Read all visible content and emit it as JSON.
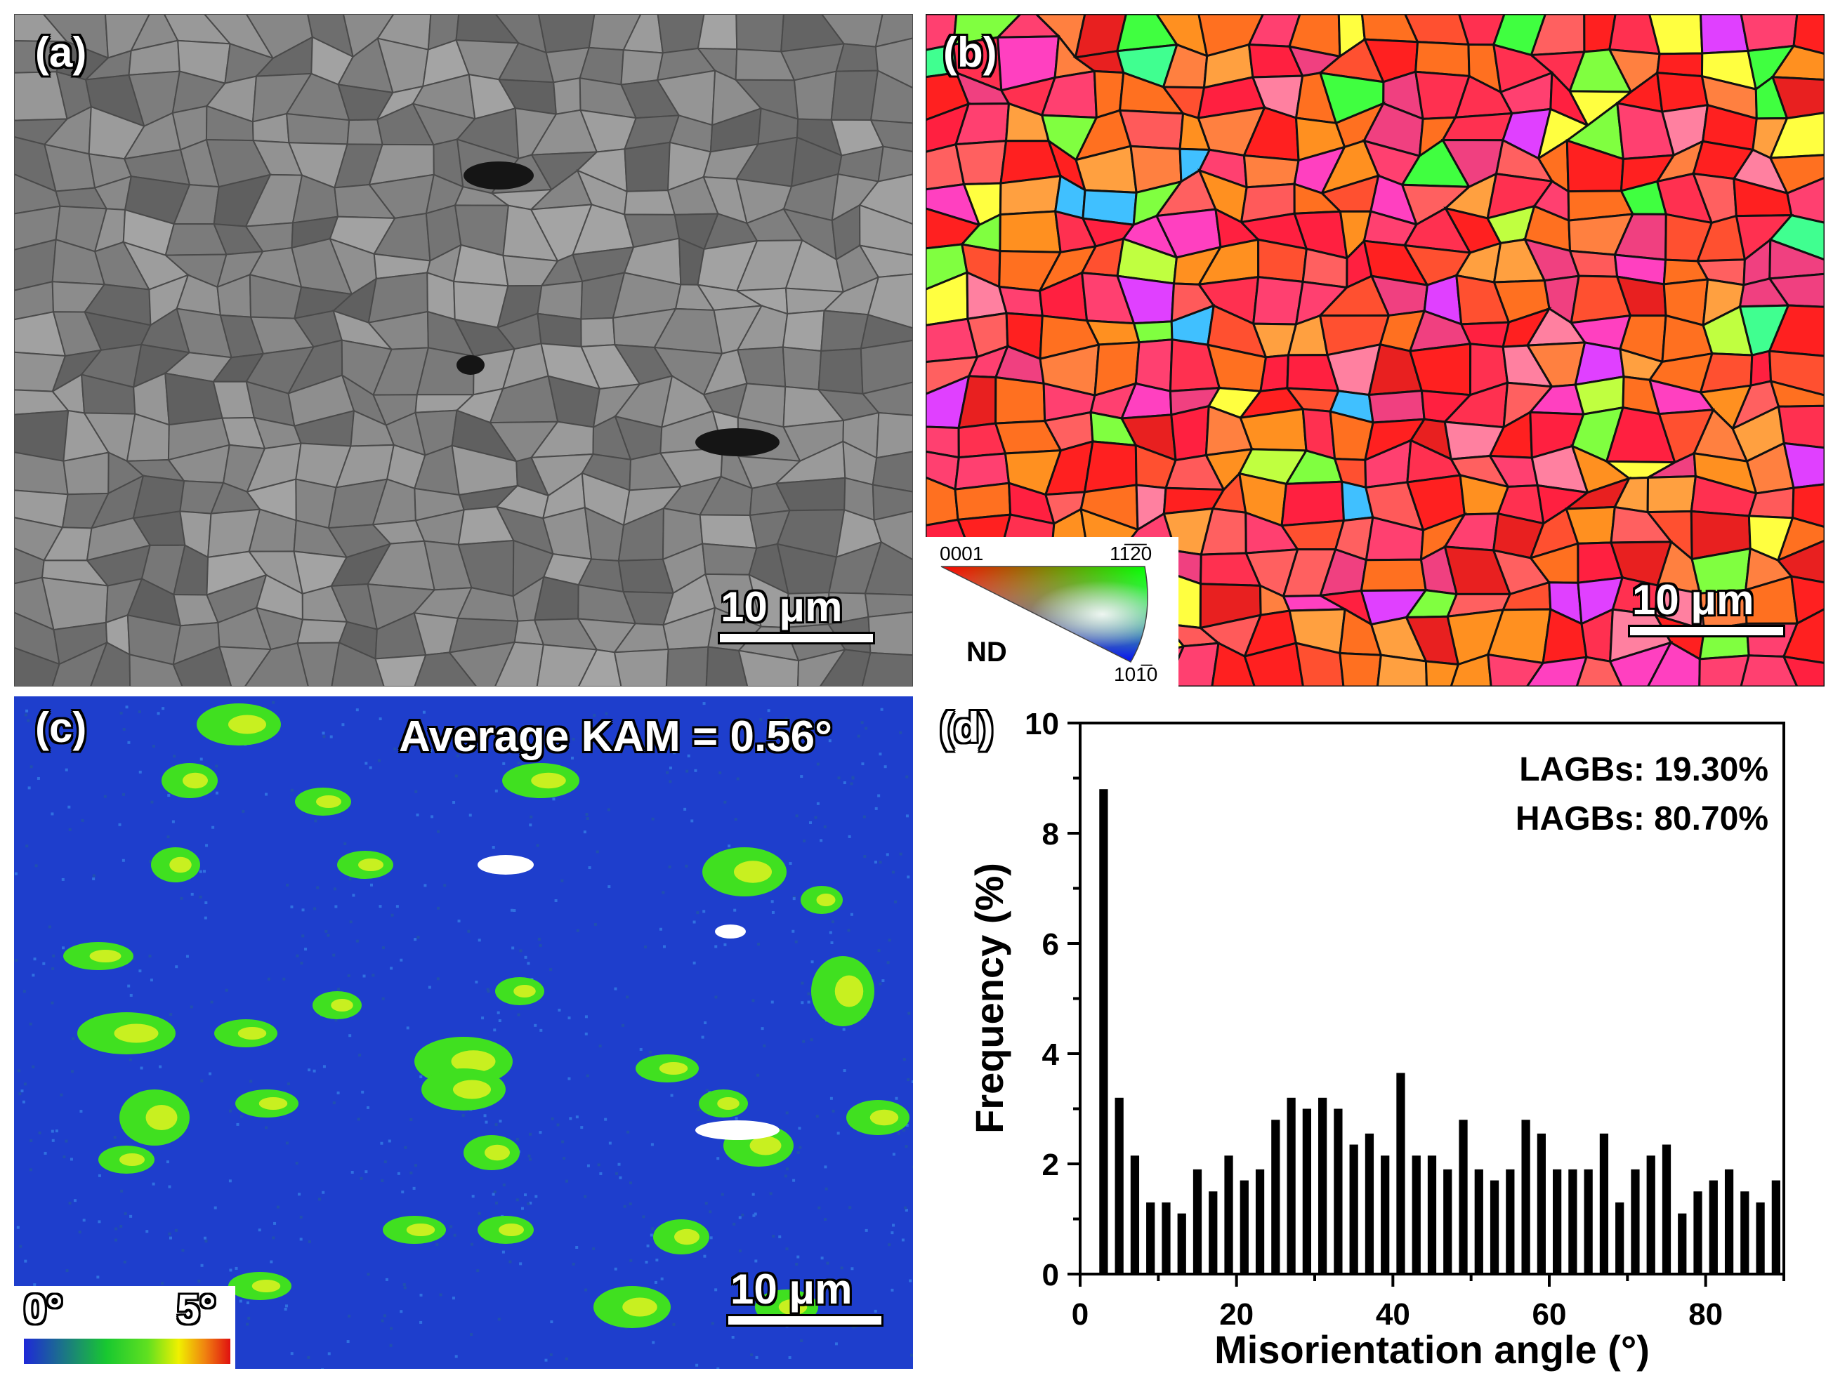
{
  "panels": {
    "a": {
      "label": "(a)",
      "scalebar": "10 μm"
    },
    "b": {
      "label": "(b)",
      "scalebar": "10 μm",
      "legend": {
        "corner_0001": "0001",
        "corner_11-20": "11̅2̅0",
        "corner_10-10": "101̅0",
        "axis": "ND"
      }
    },
    "c": {
      "label": "(c)",
      "scalebar": "10 μm",
      "title": "Average KAM = 0.56°",
      "colorbar_min": "0°",
      "colorbar_max": "5°"
    },
    "d": {
      "label": "(d)"
    }
  },
  "colors": {
    "kam_background": "#1e3ecc",
    "kam_colormap": [
      "#1e28d8",
      "#18c830",
      "#28e020",
      "#f0f000",
      "#f08010",
      "#e01010"
    ],
    "bars": "#000000"
  },
  "chart_data": {
    "type": "bar",
    "xlabel": "Misorientation angle  (°)",
    "ylabel": "Frequency (%)",
    "xlim": [
      0,
      90
    ],
    "ylim": [
      0,
      10
    ],
    "xticks": [
      0,
      20,
      40,
      60,
      80
    ],
    "yticks": [
      0,
      2,
      4,
      6,
      8,
      10
    ],
    "grid": false,
    "annotations": [
      "LAGBs: 19.30%",
      "HAGBs: 80.70%"
    ],
    "x": [
      3,
      5,
      7,
      9,
      11,
      13,
      15,
      17,
      19,
      21,
      23,
      25,
      27,
      29,
      31,
      33,
      35,
      37,
      39,
      41,
      43,
      45,
      47,
      49,
      51,
      53,
      55,
      57,
      59,
      61,
      63,
      65,
      67,
      69,
      71,
      73,
      75,
      77,
      79,
      81,
      83,
      85,
      87,
      89
    ],
    "values": [
      8.8,
      3.2,
      2.15,
      1.3,
      1.3,
      1.1,
      1.9,
      1.5,
      2.15,
      1.7,
      1.9,
      2.8,
      3.2,
      3.0,
      3.2,
      3.0,
      2.35,
      2.55,
      2.15,
      3.65,
      2.15,
      2.15,
      1.9,
      2.8,
      1.9,
      1.7,
      1.9,
      2.8,
      2.55,
      1.9,
      1.9,
      1.9,
      2.55,
      1.3,
      1.9,
      2.15,
      2.35,
      1.1,
      1.5,
      1.7,
      1.9,
      1.5,
      1.3,
      1.7
    ]
  }
}
